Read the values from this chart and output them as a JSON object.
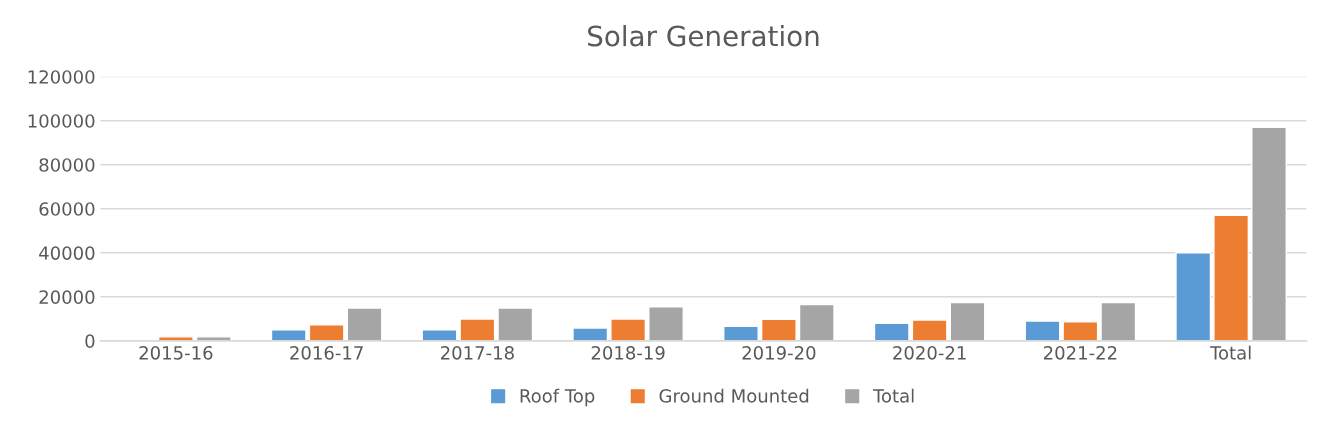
{
  "chart_data": {
    "type": "bar",
    "title": "Solar Generation",
    "categories": [
      "2015-16",
      "2016-17",
      "2017-18",
      "2018-19",
      "2019-20",
      "2020-21",
      "2021-22",
      "Total"
    ],
    "series": [
      {
        "name": "Roof Top",
        "color": "#5b9bd5",
        "values": [
          500,
          5000,
          5000,
          5800,
          6600,
          8000,
          9000,
          40000
        ]
      },
      {
        "name": "Ground Mounted",
        "color": "#ed7d31",
        "values": [
          1800,
          7300,
          9900,
          9900,
          9800,
          9400,
          8600,
          57000
        ]
      },
      {
        "name": "Total",
        "color": "#a5a5a5",
        "values": [
          1800,
          14900,
          14900,
          15500,
          16500,
          17400,
          17400,
          97000
        ]
      }
    ],
    "ylim": [
      0,
      120000
    ],
    "yticks": [
      0,
      20000,
      40000,
      60000,
      80000,
      100000,
      120000
    ],
    "grid": "y",
    "legend": "bottom"
  }
}
